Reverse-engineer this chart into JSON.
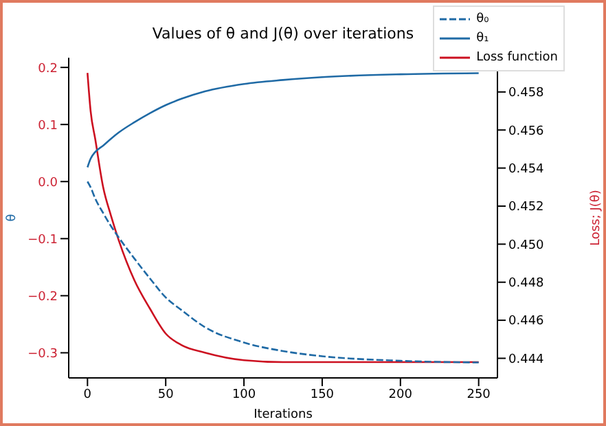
{
  "chart_data": {
    "type": "line",
    "title": "Values of θ and J(θ) over iterations",
    "xlabel": "Iterations",
    "ylabel": "θ",
    "y2label": "Loss; J(θ)",
    "x": [
      0,
      2,
      5,
      10,
      15,
      20,
      30,
      40,
      50,
      60,
      75,
      100,
      125,
      150,
      200,
      250
    ],
    "series": [
      {
        "name": "θ₀",
        "color": "#1f6aa5",
        "line_style": "dashed",
        "values": [
          0.0,
          -0.01,
          -0.03,
          -0.055,
          -0.078,
          -0.098,
          -0.135,
          -0.17,
          -0.203,
          -0.225,
          -0.255,
          -0.282,
          -0.297,
          -0.306,
          -0.314,
          -0.317
        ]
      },
      {
        "name": "θ₁",
        "color": "#1f6aa5",
        "line_style": "solid",
        "values": [
          0.025,
          0.04,
          0.052,
          0.063,
          0.075,
          0.086,
          0.104,
          0.12,
          0.134,
          0.145,
          0.158,
          0.171,
          0.178,
          0.183,
          0.188,
          0.19
        ]
      },
      {
        "name": "Loss function",
        "color": "#cc1020",
        "line_style": "solid",
        "axis": "y2",
        "values": [
          0.459,
          0.457,
          0.4555,
          0.453,
          0.4515,
          0.4502,
          0.4481,
          0.4466,
          0.4453,
          0.4447,
          0.4443,
          0.4439,
          0.4438,
          0.4438,
          0.4438,
          0.4438
        ]
      }
    ],
    "xlim": [
      -12,
      262
    ],
    "xticks": [
      0,
      50,
      100,
      150,
      200,
      250
    ],
    "ylim": [
      -0.344,
      0.217
    ],
    "yticks": [
      {
        "value": -0.3,
        "label": "−0.3"
      },
      {
        "value": -0.2,
        "label": "−0.2"
      },
      {
        "value": -0.1,
        "label": "−0.1"
      },
      {
        "value": 0.0,
        "label": "0.0"
      },
      0.1,
      0.2
    ],
    "y2lim": [
      0.44297,
      0.4598
    ],
    "y2ticks": [
      0.444,
      0.446,
      0.448,
      {
        "value": 0.45,
        "label": "0.450"
      },
      0.452,
      0.454,
      0.456,
      0.458
    ],
    "grid": false,
    "legend": "top right",
    "marker": "none"
  }
}
